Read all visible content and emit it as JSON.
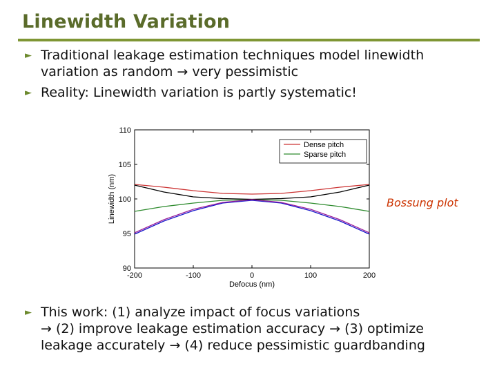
{
  "slide": {
    "title": "Linewidth Variation",
    "bullets": [
      {
        "lines": [
          "Traditional leakage estimation techniques model linewidth",
          "variation as random → very pessimistic"
        ]
      },
      {
        "lines": [
          "Reality:  Linewidth variation is partly systematic!"
        ]
      },
      {
        "lines": [
          "This work: (1) analyze impact of focus variations",
          "→ (2) improve leakage estimation accuracy → (3) optimize",
          "leakage accurately → (4) reduce pessimistic guardbanding"
        ]
      }
    ],
    "annotation": "Bossung plot",
    "accent_color": "#7f9634",
    "title_color": "#5a6b2a",
    "bullet_icon": "right-triangle-icon"
  },
  "chart_data": {
    "type": "line",
    "title": "",
    "xlabel": "Defocus (nm)",
    "ylabel": "Linewidth (nm)",
    "xlim": [
      -200,
      200
    ],
    "ylim": [
      90,
      110
    ],
    "xticks": [
      -200,
      -100,
      0,
      100,
      200
    ],
    "yticks": [
      90,
      95,
      100,
      105,
      110
    ],
    "legend_position": "top-right",
    "x": [
      -200,
      -150,
      -100,
      -50,
      0,
      50,
      100,
      150,
      200
    ],
    "series": [
      {
        "name": "Dense pitch",
        "color": "#cc3333",
        "values": [
          102.1,
          101.7,
          101.2,
          100.8,
          100.7,
          100.8,
          101.2,
          101.7,
          102.1
        ]
      },
      {
        "name": "Sparse pitch",
        "color": "#2e8b2e",
        "values": [
          98.2,
          98.9,
          99.4,
          99.8,
          99.9,
          99.8,
          99.4,
          98.9,
          98.2
        ]
      },
      {
        "name": "",
        "color": "#000000",
        "values": [
          102.0,
          101.0,
          100.3,
          100.05,
          99.95,
          100.05,
          100.3,
          101.0,
          102.0
        ]
      },
      {
        "name": "",
        "color": "#1a1acc",
        "values": [
          94.9,
          96.8,
          98.3,
          99.4,
          99.8,
          99.4,
          98.3,
          96.8,
          94.9
        ]
      },
      {
        "name": "",
        "color": "#9b1f9b",
        "values": [
          95.1,
          97.0,
          98.5,
          99.5,
          99.9,
          99.5,
          98.5,
          97.0,
          95.1
        ]
      }
    ]
  }
}
